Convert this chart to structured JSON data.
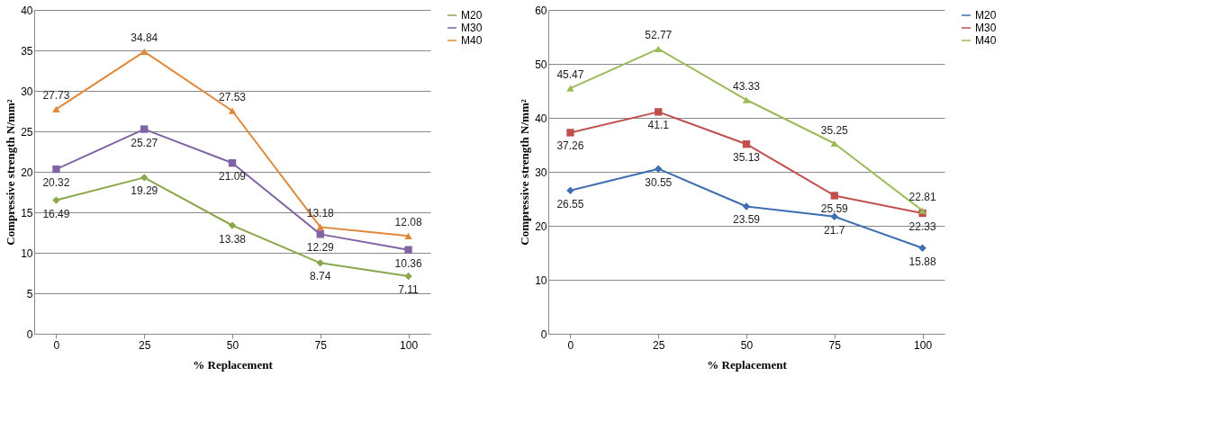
{
  "chart_data": [
    {
      "type": "line",
      "categories": [
        "0",
        "25",
        "50",
        "75",
        "100"
      ],
      "xlabel": "% Replacement",
      "ylabel": "Compressive strength N/mm²",
      "ylim": [
        0,
        40
      ],
      "yticks": [
        0,
        5,
        10,
        15,
        20,
        25,
        30,
        35,
        40
      ],
      "grid": "y",
      "legend": "right",
      "data_labels": true,
      "line_style": "solid",
      "series": [
        {
          "name": "M20",
          "color": "#8aa84b",
          "marker": "diamond",
          "values": [
            16.49,
            19.29,
            13.38,
            8.74,
            7.11
          ]
        },
        {
          "name": "M30",
          "color": "#7f63a2",
          "marker": "square",
          "values": [
            20.32,
            25.27,
            21.09,
            12.29,
            10.36
          ]
        },
        {
          "name": "M40",
          "color": "#e0883a",
          "marker": "triangle",
          "values": [
            27.73,
            34.84,
            27.53,
            13.18,
            12.08
          ]
        }
      ]
    },
    {
      "type": "line",
      "categories": [
        "0",
        "25",
        "50",
        "75",
        "100"
      ],
      "xlabel": "% Replacement",
      "ylabel": "Compressive strength N/mm²",
      "ylim": [
        0,
        60
      ],
      "yticks": [
        0,
        10,
        20,
        30,
        40,
        50,
        60
      ],
      "grid": "y",
      "legend": "right",
      "data_labels": true,
      "line_style": "solid",
      "series": [
        {
          "name": "M20",
          "color": "#3f6fb0",
          "marker": "diamond",
          "values": [
            26.55,
            30.55,
            23.59,
            21.7,
            15.88
          ]
        },
        {
          "name": "M30",
          "color": "#c0504d",
          "marker": "square",
          "values": [
            37.26,
            41.1,
            35.13,
            25.59,
            22.33
          ]
        },
        {
          "name": "M40",
          "color": "#9bbb59",
          "marker": "triangle",
          "values": [
            45.47,
            52.77,
            43.33,
            35.25,
            22.81
          ]
        }
      ]
    }
  ]
}
